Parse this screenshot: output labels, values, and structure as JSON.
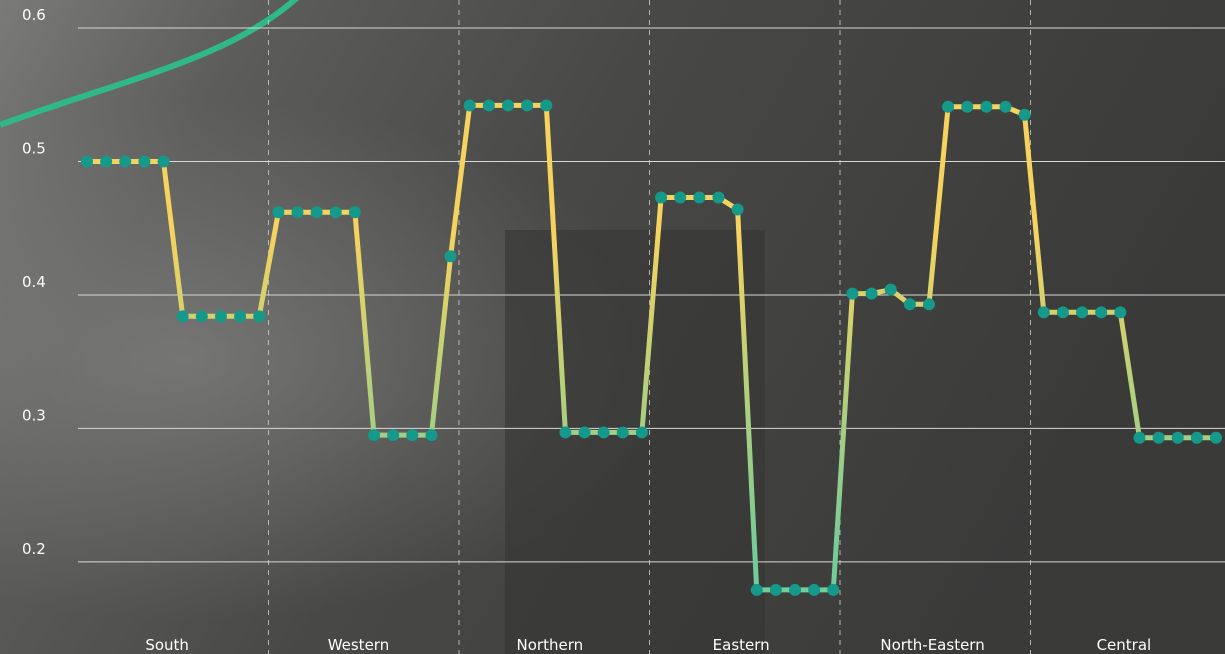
{
  "chart_data": {
    "type": "line",
    "groups": [
      "South",
      "Western",
      "Northern",
      "Eastern",
      "North-Eastern",
      "Central"
    ],
    "series": [
      {
        "values": [
          0.5,
          0.5,
          0.5,
          0.5,
          0.5,
          0.384,
          0.384,
          0.384,
          0.384,
          0.384,
          0.462,
          0.462,
          0.462,
          0.462,
          0.462,
          0.295,
          0.295,
          0.295,
          0.295,
          0.429,
          0.542,
          0.542,
          0.542,
          0.542,
          0.542,
          0.297,
          0.297,
          0.297,
          0.297,
          0.297,
          0.473,
          0.473,
          0.473,
          0.473,
          0.464,
          0.179,
          0.179,
          0.179,
          0.179,
          0.179,
          0.401,
          0.401,
          0.404,
          0.393,
          0.393,
          0.541,
          0.541,
          0.541,
          0.541,
          0.535,
          0.387,
          0.387,
          0.387,
          0.387,
          0.387,
          0.293,
          0.293,
          0.293,
          0.293,
          0.293
        ]
      }
    ],
    "line_gradient": [
      "#f6d35e",
      "#74cc9a"
    ],
    "marker_color": "#14998b",
    "ylim": [
      0.131,
      0.621
    ],
    "yticks": [
      0.2,
      0.3,
      0.4,
      0.5,
      0.6
    ],
    "grid": true
  }
}
